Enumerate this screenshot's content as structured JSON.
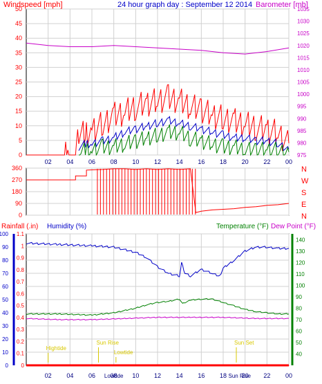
{
  "header": {
    "left": "Windspeed [mph]",
    "center": "24 hour graph day : September 12 2014",
    "right": "Barometer [mb]"
  },
  "colors": {
    "red": "#ff0000",
    "blue": "#0000c8",
    "green": "#008000",
    "magenta": "#c800c8",
    "yellow": "#d8c800",
    "grid": "#d0d0d0"
  },
  "chart_data": [
    {
      "type": "line",
      "panel": "wind-barometer",
      "x_ticks": [
        "02",
        "04",
        "06",
        "08",
        "10",
        "12",
        "14",
        "16",
        "18",
        "20",
        "22",
        "00"
      ],
      "x_range_hours": [
        0,
        24
      ],
      "left_axis": {
        "label": "Windspeed [mph]",
        "range": [
          0,
          50
        ],
        "ticks": [
          0,
          5,
          10,
          15,
          20,
          25,
          30,
          35,
          40,
          45,
          50
        ]
      },
      "right_axis": {
        "label": "Barometer [mb]",
        "range": [
          975,
          1035
        ],
        "ticks": [
          975,
          980,
          985,
          990,
          995,
          1000,
          1005,
          1010,
          1015,
          1020,
          1025,
          1030,
          1035
        ]
      },
      "grid": true,
      "series": [
        {
          "name": "Windspeed [mph]",
          "axis": "left",
          "points": [
            [
              0,
              0
            ],
            [
              3.5,
              0
            ],
            [
              3.8,
              4
            ],
            [
              3.9,
              0
            ],
            [
              4.5,
              0
            ],
            [
              4.8,
              7
            ],
            [
              5.5,
              8
            ],
            [
              6,
              9
            ],
            [
              7,
              11
            ],
            [
              8,
              14
            ],
            [
              9,
              15
            ],
            [
              10,
              17
            ],
            [
              11,
              18
            ],
            [
              12,
              19
            ],
            [
              13,
              20
            ],
            [
              14,
              19
            ],
            [
              15,
              17
            ],
            [
              16,
              16
            ],
            [
              17,
              14
            ],
            [
              18,
              13
            ],
            [
              19,
              12
            ],
            [
              20,
              11
            ],
            [
              21,
              10
            ],
            [
              22,
              9
            ],
            [
              23,
              8
            ],
            [
              24,
              4
            ]
          ]
        },
        {
          "name": "",
          "axis": "left",
          "points": [
            [
              4.8,
              3
            ],
            [
              5.5,
              4
            ],
            [
              6,
              4
            ],
            [
              7,
              5
            ],
            [
              8,
              6
            ],
            [
              9,
              8
            ],
            [
              10,
              9
            ],
            [
              11,
              10
            ],
            [
              12,
              11
            ],
            [
              13,
              12
            ],
            [
              14,
              11
            ],
            [
              15,
              10
            ],
            [
              16,
              9
            ],
            [
              17,
              8
            ],
            [
              18,
              7
            ],
            [
              19,
              6
            ],
            [
              20,
              6
            ],
            [
              21,
              5
            ],
            [
              22,
              5
            ],
            [
              23,
              4
            ],
            [
              24,
              2
            ]
          ]
        },
        {
          "name": "",
          "axis": "left",
          "points": [
            [
              4.8,
              1
            ],
            [
              5.5,
              2
            ],
            [
              6,
              2
            ],
            [
              7,
              3
            ],
            [
              8,
              3
            ],
            [
              9,
              4
            ],
            [
              10,
              5
            ],
            [
              11,
              6
            ],
            [
              12,
              7
            ],
            [
              13,
              8
            ],
            [
              14,
              8
            ],
            [
              15,
              6
            ],
            [
              16,
              5
            ],
            [
              17,
              4
            ],
            [
              18,
              3
            ],
            [
              19,
              3
            ],
            [
              20,
              2
            ],
            [
              21,
              2
            ],
            [
              22,
              2
            ],
            [
              23,
              2
            ],
            [
              24,
              1
            ]
          ]
        },
        {
          "name": "Barometer [mb]",
          "axis": "right",
          "points": [
            [
              0,
              1021
            ],
            [
              2,
              1020
            ],
            [
              4,
              1019.5
            ],
            [
              6,
              1019.5
            ],
            [
              8,
              1020
            ],
            [
              10,
              1019.5
            ],
            [
              12,
              1019
            ],
            [
              14,
              1018.5
            ],
            [
              16,
              1018
            ],
            [
              18,
              1017
            ],
            [
              20,
              1016.5
            ],
            [
              22,
              1017.5
            ],
            [
              24,
              1019
            ]
          ]
        }
      ]
    },
    {
      "type": "line",
      "panel": "wind-direction",
      "left_axis": {
        "range": [
          0,
          360
        ],
        "ticks": [
          0,
          90,
          180,
          270,
          360
        ]
      },
      "right_labels": [
        "N",
        "W",
        "S",
        "E",
        "N"
      ],
      "series": [
        {
          "name": "",
          "points": [
            [
              0,
              270
            ],
            [
              4.5,
              270
            ],
            [
              4.5,
              300
            ],
            [
              5.5,
              300
            ],
            [
              5.5,
              345
            ],
            [
              7,
              350
            ],
            [
              8,
              355
            ],
            [
              9,
              355
            ],
            [
              10,
              350
            ],
            [
              11,
              355
            ],
            [
              12,
              350
            ],
            [
              13,
              355
            ],
            [
              14,
              350
            ],
            [
              15,
              355
            ],
            [
              15.5,
              20
            ],
            [
              16,
              30
            ],
            [
              17,
              40
            ],
            [
              18,
              45
            ],
            [
              19,
              50
            ],
            [
              20,
              60
            ],
            [
              21,
              65
            ],
            [
              22,
              75
            ],
            [
              23,
              80
            ],
            [
              24,
              90
            ]
          ]
        }
      ]
    },
    {
      "type": "line",
      "panel": "rain-humidity-temperature",
      "labels": {
        "rainfall": "Rainfall (.in)",
        "humidity": "Humidity (%)",
        "temperature": "Temperature (°F)",
        "dewpoint": "Dew Point (°F)"
      },
      "left_rain_axis": {
        "range": [
          0,
          1.1
        ],
        "ticks": [
          "0",
          "0.1",
          "0.2",
          "0.3",
          "0.4",
          "0.5",
          "0.6",
          "0.7",
          "0.8",
          "0.9",
          "1",
          "1.1"
        ]
      },
      "left_humidity_axis": {
        "range": [
          0,
          100
        ],
        "ticks": [
          0,
          10,
          20,
          30,
          40,
          50,
          60,
          70,
          80,
          90,
          100
        ]
      },
      "right_axis": {
        "range": [
          30,
          145
        ],
        "ticks": [
          40,
          50,
          60,
          70,
          80,
          90,
          100,
          110,
          120,
          130,
          140
        ]
      },
      "series": [
        {
          "name": "Humidity (%)",
          "axis": "humidity",
          "points": [
            [
              0,
              93
            ],
            [
              3,
              92
            ],
            [
              6,
              91
            ],
            [
              8,
              90
            ],
            [
              10,
              86
            ],
            [
              11,
              82
            ],
            [
              12,
              75
            ],
            [
              13,
              70
            ],
            [
              14,
              68
            ],
            [
              14.2,
              78
            ],
            [
              14.5,
              70
            ],
            [
              15,
              68
            ],
            [
              16,
              73
            ],
            [
              17,
              70
            ],
            [
              17.7,
              68
            ],
            [
              18,
              74
            ],
            [
              19,
              80
            ],
            [
              20,
              87
            ],
            [
              21,
              90
            ],
            [
              22,
              90
            ],
            [
              23,
              89
            ],
            [
              24,
              89
            ]
          ]
        },
        {
          "name": "Temperature (°F)",
          "axis": "right",
          "points": [
            [
              0,
              75
            ],
            [
              3,
              75
            ],
            [
              6,
              74
            ],
            [
              8,
              76
            ],
            [
              10,
              80
            ],
            [
              11,
              83
            ],
            [
              12,
              85
            ],
            [
              13,
              86
            ],
            [
              14,
              88
            ],
            [
              14.3,
              84
            ],
            [
              15,
              87
            ],
            [
              16,
              88
            ],
            [
              17,
              88
            ],
            [
              18,
              85
            ],
            [
              19,
              82
            ],
            [
              20,
              79
            ],
            [
              21,
              77
            ],
            [
              22,
              76
            ],
            [
              23,
              75
            ],
            [
              24,
              75
            ]
          ]
        },
        {
          "name": "Dew Point (°F)",
          "axis": "right",
          "points": [
            [
              0,
              71
            ],
            [
              3,
              70
            ],
            [
              6,
              70
            ],
            [
              9,
              71
            ],
            [
              12,
              72
            ],
            [
              15,
              72
            ],
            [
              18,
              72
            ],
            [
              21,
              71
            ],
            [
              24,
              71
            ]
          ]
        },
        {
          "name": "Rainfall (.in)",
          "axis": "rain",
          "points": [
            [
              0,
              0
            ],
            [
              24,
              0
            ]
          ]
        }
      ],
      "annotations": [
        {
          "text": "Hightide",
          "hour": 2
        },
        {
          "text": "Sun Rise",
          "hour": 6.6
        },
        {
          "text": "Lowtide",
          "hour": 8.2
        },
        {
          "text": "Sun Set",
          "hour": 19.2
        }
      ],
      "x_bottom_labels": [
        "02",
        "04",
        "06",
        "08",
        "10",
        "12",
        "14",
        "16",
        "18",
        "20",
        "22",
        "00"
      ],
      "x_bottom_extra": [
        "Lowtide",
        "Sun Rise"
      ]
    }
  ]
}
